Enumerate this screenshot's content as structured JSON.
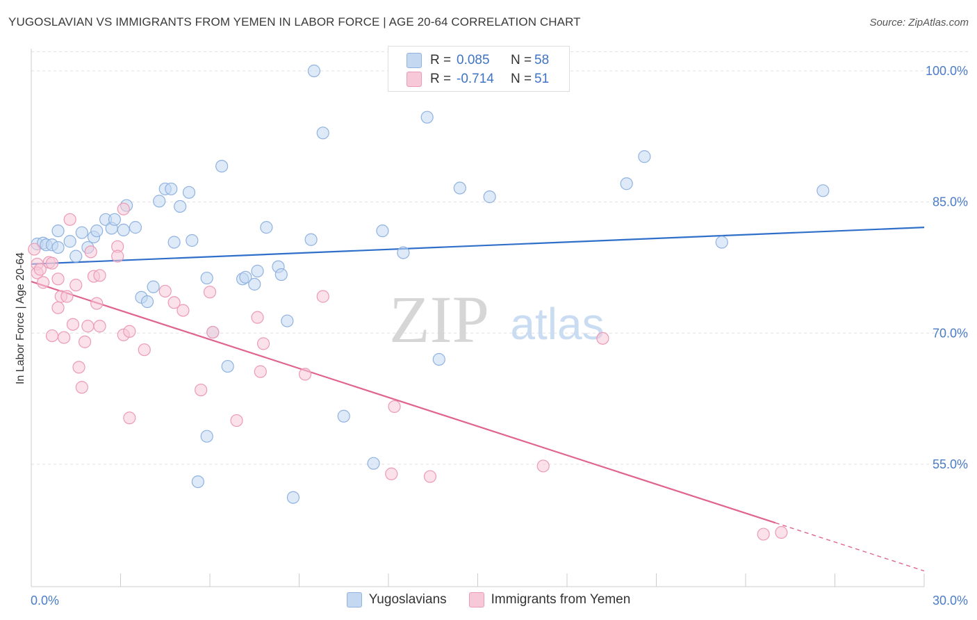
{
  "title": "YUGOSLAVIAN VS IMMIGRANTS FROM YEMEN IN LABOR FORCE | AGE 20-64 CORRELATION CHART",
  "source": "Source: ZipAtlas.com",
  "watermark": {
    "zip": "ZIP",
    "atlas": "atlas"
  },
  "legend": {
    "rows": [
      {
        "r_label": "R =",
        "r_value": "0.085",
        "n_label": "N =",
        "n_value": "58"
      },
      {
        "r_label": "R =",
        "r_value": "-0.714",
        "n_label": "N =",
        "n_value": "51"
      }
    ]
  },
  "bottom_legend": {
    "items": [
      {
        "label": "Yugoslavians"
      },
      {
        "label": "Immigrants from Yemen"
      }
    ]
  },
  "colors": {
    "blue_fill": "#c5d8f2",
    "blue_stroke": "#8fb2e0",
    "blue_line": "#2f6fca",
    "pink_fill": "#f7c8d7",
    "pink_stroke": "#ec9ab5",
    "pink_line": "#e0648f",
    "grid": "#e0e0e0",
    "tick_text": "#4a7cc9"
  },
  "chart_data": {
    "type": "scatter",
    "title": "YUGOSLAVIAN VS IMMIGRANTS FROM YEMEN IN LABOR FORCE | AGE 20-64 CORRELATION CHART",
    "xlabel": "",
    "ylabel": "In Labor Force | Age 20-64",
    "xlim": [
      0,
      30
    ],
    "ylim": [
      41,
      103.5
    ],
    "x_tick_labels": [
      "0.0%",
      "30.0%"
    ],
    "y_ticks": [
      55,
      70,
      85,
      100
    ],
    "y_tick_labels": [
      "55.0%",
      "70.0%",
      "85.0%",
      "100.0%"
    ],
    "grid": true,
    "legend_position": "top-center",
    "series": [
      {
        "name": "Yugoslavians",
        "r": 0.085,
        "n": 58,
        "trend": {
          "x0": 0,
          "y0": 77.9,
          "x1": 30,
          "y1": 82.1
        },
        "points": [
          [
            0.2,
            80.2
          ],
          [
            0.4,
            80.3
          ],
          [
            0.5,
            80.1
          ],
          [
            0.7,
            80.1
          ],
          [
            0.9,
            79.8
          ],
          [
            0.9,
            81.7
          ],
          [
            1.3,
            80.5
          ],
          [
            1.5,
            78.8
          ],
          [
            1.7,
            81.5
          ],
          [
            1.9,
            79.8
          ],
          [
            2.1,
            81.0
          ],
          [
            2.2,
            81.7
          ],
          [
            2.5,
            83.0
          ],
          [
            2.7,
            82.0
          ],
          [
            2.8,
            83.0
          ],
          [
            3.1,
            81.8
          ],
          [
            3.2,
            84.6
          ],
          [
            3.5,
            82.1
          ],
          [
            3.7,
            74.1
          ],
          [
            3.9,
            73.6
          ],
          [
            4.1,
            75.3
          ],
          [
            4.3,
            85.1
          ],
          [
            4.5,
            86.5
          ],
          [
            4.7,
            86.5
          ],
          [
            4.8,
            80.4
          ],
          [
            5.0,
            84.5
          ],
          [
            5.3,
            86.1
          ],
          [
            5.4,
            80.6
          ],
          [
            5.6,
            53.0
          ],
          [
            5.9,
            76.3
          ],
          [
            5.9,
            58.2
          ],
          [
            6.1,
            70.1
          ],
          [
            6.4,
            89.1
          ],
          [
            6.6,
            66.2
          ],
          [
            7.1,
            76.2
          ],
          [
            7.2,
            76.4
          ],
          [
            7.5,
            75.6
          ],
          [
            7.6,
            77.1
          ],
          [
            7.9,
            82.1
          ],
          [
            8.3,
            77.6
          ],
          [
            8.4,
            76.7
          ],
          [
            8.6,
            71.4
          ],
          [
            8.8,
            51.2
          ],
          [
            9.4,
            80.7
          ],
          [
            9.5,
            100.0
          ],
          [
            9.8,
            92.9
          ],
          [
            10.5,
            60.5
          ],
          [
            11.5,
            55.1
          ],
          [
            11.8,
            81.7
          ],
          [
            12.5,
            79.2
          ],
          [
            13.3,
            94.7
          ],
          [
            13.7,
            67.0
          ],
          [
            14.4,
            86.6
          ],
          [
            15.4,
            85.6
          ],
          [
            20.0,
            87.1
          ],
          [
            20.6,
            90.2
          ],
          [
            23.2,
            80.4
          ],
          [
            26.6,
            86.3
          ]
        ]
      },
      {
        "name": "Immigrants from Yemen",
        "r": -0.714,
        "n": 51,
        "trend": {
          "x0": 0,
          "y0": 75.9,
          "x1": 25.0,
          "y1": 48.3,
          "dash_x1": 30,
          "dash_y1": 42.8
        },
        "points": [
          [
            0.1,
            79.6
          ],
          [
            0.2,
            77.9
          ],
          [
            0.2,
            76.9
          ],
          [
            0.3,
            77.3
          ],
          [
            0.4,
            75.8
          ],
          [
            0.6,
            78.1
          ],
          [
            0.7,
            78.0
          ],
          [
            0.7,
            69.7
          ],
          [
            0.9,
            76.2
          ],
          [
            0.9,
            72.9
          ],
          [
            1.0,
            74.2
          ],
          [
            1.1,
            69.5
          ],
          [
            1.2,
            74.2
          ],
          [
            1.3,
            83.0
          ],
          [
            1.4,
            71.0
          ],
          [
            1.5,
            75.5
          ],
          [
            1.6,
            66.1
          ],
          [
            1.7,
            63.8
          ],
          [
            1.8,
            69.0
          ],
          [
            1.9,
            70.8
          ],
          [
            2.0,
            79.3
          ],
          [
            2.1,
            76.5
          ],
          [
            2.2,
            73.4
          ],
          [
            2.3,
            76.6
          ],
          [
            2.3,
            70.8
          ],
          [
            2.9,
            79.9
          ],
          [
            2.9,
            78.8
          ],
          [
            3.1,
            69.8
          ],
          [
            3.1,
            84.2
          ],
          [
            3.3,
            70.2
          ],
          [
            3.3,
            60.3
          ],
          [
            3.8,
            68.1
          ],
          [
            4.5,
            74.8
          ],
          [
            4.8,
            73.5
          ],
          [
            5.1,
            72.6
          ],
          [
            5.7,
            63.5
          ],
          [
            6.0,
            74.7
          ],
          [
            6.1,
            70.1
          ],
          [
            6.9,
            60.0
          ],
          [
            7.6,
            71.8
          ],
          [
            7.7,
            65.6
          ],
          [
            7.8,
            68.8
          ],
          [
            9.2,
            65.3
          ],
          [
            9.8,
            74.2
          ],
          [
            12.1,
            53.9
          ],
          [
            12.2,
            61.6
          ],
          [
            13.4,
            53.6
          ],
          [
            17.2,
            54.8
          ],
          [
            19.2,
            69.4
          ],
          [
            24.6,
            47.0
          ],
          [
            25.2,
            47.2
          ]
        ]
      }
    ]
  }
}
